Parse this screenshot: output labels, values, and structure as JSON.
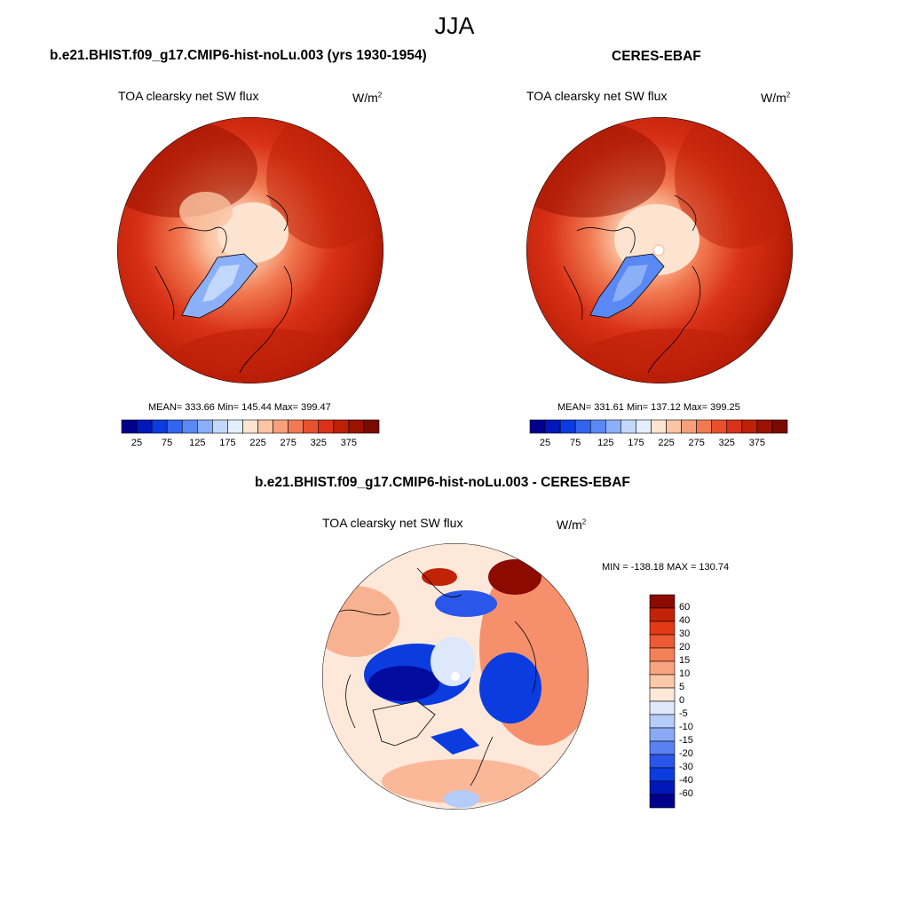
{
  "figure": {
    "title": "JJA",
    "colors": {
      "abs_levels": [
        "#00008c",
        "#0018b8",
        "#0a3ce0",
        "#3264f0",
        "#5a88f5",
        "#8cb0f8",
        "#c2d8fb",
        "#e2eefc",
        "#fde4d0",
        "#fbc4a4",
        "#f7a07a",
        "#f17a52",
        "#e9502c",
        "#d93218",
        "#be2008",
        "#9a1200",
        "#7a0a00"
      ],
      "diff_levels": [
        "#00008c",
        "#0018b8",
        "#0a3ce0",
        "#2a56ec",
        "#5a80f2",
        "#8aaaf5",
        "#b6ccf8",
        "#dde8fb",
        "#fde8da",
        "#fcc8aa",
        "#f8a47e",
        "#f48058",
        "#ee5a34",
        "#e23a14",
        "#c22206",
        "#8c0a00"
      ]
    },
    "panels": [
      {
        "title": "b.e21.BHIST.f09_g17.CMIP6-hist-noLu.003 (yrs 1930-1954)",
        "variable": "TOA clearsky net SW flux",
        "units": "W/m",
        "units_exp": "2",
        "stats": "MEAN= 333.66  Min= 145.44  Max= 399.47",
        "colorbar_ticks": [
          "25",
          "75",
          "125",
          "175",
          "225",
          "275",
          "325",
          "375"
        ]
      },
      {
        "title": "CERES-EBAF",
        "variable": "TOA clearsky net SW flux",
        "units": "W/m",
        "units_exp": "2",
        "stats": "MEAN= 331.61  Min= 137.12  Max= 399.25",
        "colorbar_ticks": [
          "25",
          "75",
          "125",
          "175",
          "225",
          "275",
          "325",
          "375"
        ]
      }
    ],
    "difference": {
      "title": "b.e21.BHIST.f09_g17.CMIP6-hist-noLu.003 - CERES-EBAF",
      "variable": "TOA clearsky net SW flux",
      "units": "W/m",
      "units_exp": "2",
      "minmax": "MIN = -138.18 MAX = 130.74",
      "colorbar_labels": [
        "60",
        "40",
        "30",
        "20",
        "15",
        "10",
        "5",
        "0",
        "-5",
        "-10",
        "-15",
        "-20",
        "-30",
        "-40",
        "-60"
      ]
    }
  }
}
